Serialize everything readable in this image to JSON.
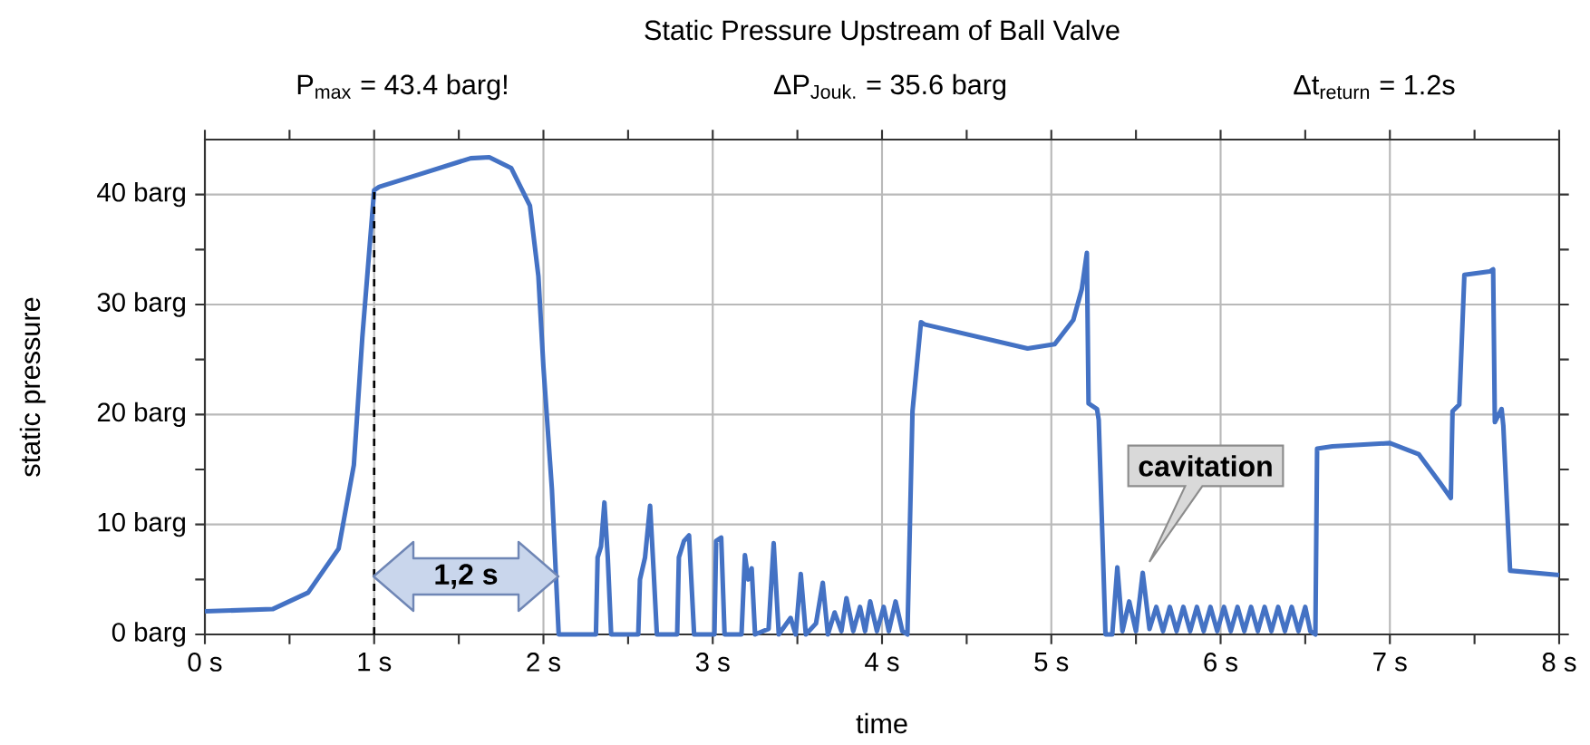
{
  "chart_data": {
    "type": "line",
    "title": "Static Pressure Upstream of Ball Valve",
    "xlabel": "time",
    "ylabel": "static pressure",
    "annotations": [
      "P$_{max}$ = 43.4 barg!",
      "ΔP$_{Jouk.}$ = 35.6 barg",
      "Δt$_{return}$ = 1.2s",
      "1,2 s",
      "cavitation"
    ],
    "series": [
      {
        "color": "#4472c4",
        "line_style": "solid",
        "marker": "none",
        "x": [
          0,
          0.4,
          0.61,
          0.79,
          0.88,
          0.93,
          1.0,
          1.03,
          1.28,
          1.57,
          1.68,
          1.81,
          1.92,
          1.97,
          2.0,
          2.05,
          2.09,
          2.31,
          2.32,
          2.34,
          2.36,
          2.38,
          2.4,
          2.56,
          2.57,
          2.6,
          2.63,
          2.65,
          2.67,
          2.79,
          2.8,
          2.83,
          2.86,
          2.89,
          3.01,
          3.02,
          3.05,
          3.07,
          3.17,
          3.19,
          3.21,
          3.23,
          3.25,
          3.33,
          3.36,
          3.39,
          3.46,
          3.49,
          3.52,
          3.55,
          3.61,
          3.65,
          3.68,
          3.72,
          3.76,
          3.79,
          3.83,
          3.87,
          3.9,
          3.93,
          3.97,
          4.01,
          4.04,
          4.08,
          4.12,
          4.15,
          4.18,
          4.23,
          4.25,
          4.86,
          5.02,
          5.13,
          5.18,
          5.21,
          5.22,
          5.27,
          5.28,
          5.32,
          5.36,
          5.39,
          5.42,
          5.46,
          5.5,
          5.54,
          5.58,
          5.62,
          5.66,
          5.7,
          5.74,
          5.78,
          5.82,
          5.86,
          5.9,
          5.94,
          5.98,
          6.02,
          6.06,
          6.1,
          6.14,
          6.18,
          6.22,
          6.26,
          6.3,
          6.34,
          6.38,
          6.42,
          6.46,
          6.5,
          6.53,
          6.56,
          6.57,
          6.66,
          7.0,
          7.17,
          7.3,
          7.36,
          7.37,
          7.41,
          7.44,
          7.59,
          7.61,
          7.62,
          7.66,
          7.67,
          7.71,
          8
        ],
        "values": [
          2.1,
          2.3,
          3.8,
          7.8,
          15.4,
          27,
          40.4,
          40.7,
          41.9,
          43.3,
          43.4,
          42.4,
          39,
          32.6,
          24.3,
          13.2,
          0,
          0,
          7,
          8,
          12,
          7,
          0,
          0,
          5,
          7,
          11.7,
          6,
          0,
          0,
          7,
          8.5,
          9,
          0,
          0,
          8.5,
          8.8,
          0,
          0,
          7.2,
          5,
          6,
          0,
          0.5,
          8.3,
          0,
          1.5,
          0,
          5.5,
          0,
          1,
          4.7,
          0,
          2,
          0.3,
          3.3,
          0.3,
          2.5,
          0.3,
          3,
          0.3,
          2.5,
          0.3,
          3,
          0.3,
          0,
          20.3,
          28.4,
          28.2,
          26,
          26.4,
          28.6,
          31.4,
          34.7,
          21,
          20.5,
          19.5,
          0,
          0,
          6.1,
          0.3,
          3,
          0.3,
          5.6,
          0.5,
          2.5,
          0.3,
          2.5,
          0.3,
          2.5,
          0.3,
          2.5,
          0.3,
          2.5,
          0.3,
          2.5,
          0.3,
          2.5,
          0.3,
          2.5,
          0.3,
          2.5,
          0.3,
          2.5,
          0.3,
          2.5,
          0.3,
          2.5,
          0.3,
          0,
          16.9,
          17.1,
          17.4,
          16.4,
          13.7,
          12.4,
          20.3,
          20.9,
          32.7,
          33,
          33.2,
          19.3,
          20.5,
          19,
          5.8,
          5.4
        ]
      }
    ],
    "xlim": [
      0,
      8
    ],
    "ylim": [
      0,
      45
    ],
    "xticks": [
      {
        "value": 0,
        "label": "0 s"
      },
      {
        "value": 0.5,
        "label": null
      },
      {
        "value": 1,
        "label": "1 s"
      },
      {
        "value": 1.5,
        "label": null
      },
      {
        "value": 2,
        "label": "2 s"
      },
      {
        "value": 2.5,
        "label": null
      },
      {
        "value": 3,
        "label": "3 s"
      },
      {
        "value": 3.5,
        "label": null
      },
      {
        "value": 4,
        "label": "4 s"
      },
      {
        "value": 4.5,
        "label": null
      },
      {
        "value": 5,
        "label": "5 s"
      },
      {
        "value": 5.5,
        "label": null
      },
      {
        "value": 6,
        "label": "6 s"
      },
      {
        "value": 6.5,
        "label": null
      },
      {
        "value": 7,
        "label": "7 s"
      },
      {
        "value": 7.5,
        "label": null
      },
      {
        "value": 8,
        "label": "8 s"
      }
    ],
    "yticks": [
      {
        "value": 0,
        "label": "0 barg"
      },
      {
        "value": 5,
        "label": null
      },
      {
        "value": 10,
        "label": "10 barg"
      },
      {
        "value": 15,
        "label": null
      },
      {
        "value": 20,
        "label": "20 barg"
      },
      {
        "value": 25,
        "label": null
      },
      {
        "value": 30,
        "label": "30 barg"
      },
      {
        "value": 35,
        "label": null
      },
      {
        "value": 40,
        "label": "40 barg"
      }
    ],
    "grid": true,
    "ref_lines": [
      {
        "axis": "x",
        "value": 1,
        "color": "#000000",
        "line_style": "dashed"
      }
    ]
  }
}
